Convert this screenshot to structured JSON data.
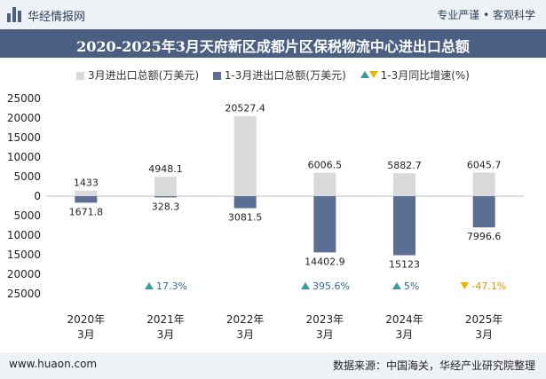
{
  "header": {
    "site_name": "华经情报网",
    "tagline": "专业严谨 • 客观科学"
  },
  "footer": {
    "url": "www.huaon.com",
    "source": "数据来源：中国海关，华经产业研究院整理"
  },
  "colors": {
    "march_total": "#d9d9d9",
    "ytd_total": "#5b6f94",
    "growth_up": "#3a9aa0",
    "growth_down": "#e8b800",
    "title_band": "#4a5f82"
  },
  "chart_data": {
    "type": "bar",
    "title": "2020-2025年3月天府新区成都片区保税物流中心进出口总额",
    "categories": [
      [
        "2020年",
        "3月"
      ],
      [
        "2021年",
        "3月"
      ],
      [
        "2022年",
        "3月"
      ],
      [
        "2023年",
        "3月"
      ],
      [
        "2024年",
        "3月"
      ],
      [
        "2025年",
        "3月"
      ]
    ],
    "series": [
      {
        "name": "3月进出口总额(万美元)",
        "values": [
          1433,
          4948.1,
          20527.4,
          6006.5,
          5882.7,
          6045.7
        ],
        "labels": [
          "1433",
          "4948.1",
          "20527.4",
          "6006.5",
          "5882.7",
          "6045.7"
        ],
        "direction": "up"
      },
      {
        "name": "1-3月进出口总额(万美元)",
        "values": [
          1671.8,
          328.3,
          3081.5,
          14402.9,
          15123,
          7996.6
        ],
        "labels": [
          "1671.8",
          "328.3",
          "3081.5",
          "14402.9",
          "15123",
          "7996.6"
        ],
        "direction": "down"
      },
      {
        "name": "1-3月同比增速(%)",
        "values": [
          null,
          17.3,
          null,
          395.6,
          5,
          -47.1
        ],
        "labels": [
          "",
          "17.3%",
          "",
          "395.6%",
          "5%",
          "-47.1%"
        ]
      }
    ],
    "y_ticks": [
      "25000",
      "20000",
      "15000",
      "10000",
      "5000",
      "0",
      "5000",
      "10000",
      "15000",
      "20000",
      "25000"
    ],
    "ylim": [
      -25000,
      25000
    ],
    "grid": false,
    "legend": "top-center"
  }
}
